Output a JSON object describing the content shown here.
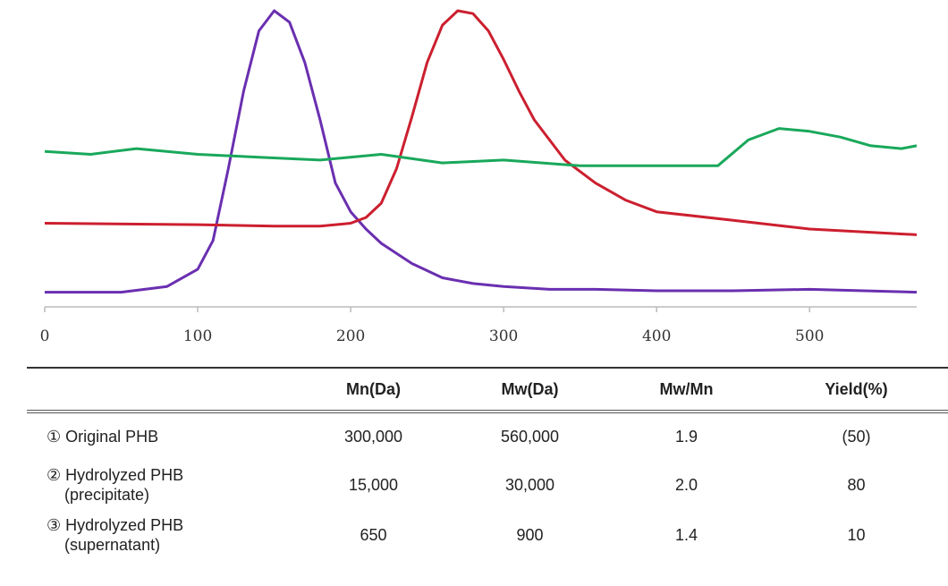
{
  "chart_data": {
    "type": "line",
    "xlim": [
      0,
      570
    ],
    "ylim": [
      0,
      1
    ],
    "x_ticks": [
      0,
      100,
      200,
      300,
      400,
      500
    ],
    "xlabel": "",
    "ylabel": "",
    "grid": false,
    "series": [
      {
        "color": "#6a2fb0",
        "x": [
          0,
          50,
          80,
          100,
          110,
          120,
          130,
          140,
          150,
          160,
          170,
          180,
          190,
          200,
          210,
          220,
          240,
          260,
          280,
          300,
          330,
          360,
          400,
          450,
          500,
          570
        ],
        "y": [
          0.02,
          0.02,
          0.04,
          0.1,
          0.2,
          0.45,
          0.72,
          0.93,
          1.0,
          0.96,
          0.82,
          0.62,
          0.4,
          0.3,
          0.24,
          0.19,
          0.12,
          0.07,
          0.05,
          0.04,
          0.03,
          0.03,
          0.025,
          0.025,
          0.03,
          0.02
        ]
      },
      {
        "color": "#cc1f2f",
        "x": [
          0,
          100,
          150,
          180,
          200,
          210,
          220,
          230,
          240,
          250,
          260,
          270,
          280,
          290,
          300,
          310,
          320,
          340,
          360,
          380,
          400,
          450,
          500,
          570
        ],
        "y": [
          0.26,
          0.255,
          0.25,
          0.25,
          0.26,
          0.28,
          0.33,
          0.45,
          0.63,
          0.82,
          0.95,
          1.0,
          0.99,
          0.93,
          0.83,
          0.72,
          0.62,
          0.48,
          0.4,
          0.34,
          0.3,
          0.27,
          0.24,
          0.22
        ]
      },
      {
        "color": "#19a85b",
        "x": [
          0,
          30,
          60,
          100,
          140,
          180,
          220,
          260,
          300,
          350,
          400,
          440,
          460,
          480,
          500,
          520,
          540,
          560,
          570
        ],
        "y": [
          0.51,
          0.5,
          0.52,
          0.5,
          0.49,
          0.48,
          0.5,
          0.47,
          0.48,
          0.46,
          0.46,
          0.46,
          0.55,
          0.59,
          0.58,
          0.56,
          0.53,
          0.52,
          0.53
        ]
      }
    ]
  },
  "table": {
    "headers": [
      "",
      "Mn(Da)",
      "Mw(Da)",
      "Mw/Mn",
      "Yield(%)"
    ],
    "rows": [
      {
        "label1": "① Original PHB",
        "label2": "",
        "mn": "300,000",
        "mw": "560,000",
        "ratio": "1.9",
        "yield": "(50)"
      },
      {
        "label1": "② Hydrolyzed PHB",
        "label2": "(precipitate)",
        "mn": "15,000",
        "mw": "30,000",
        "ratio": "2.0",
        "yield": "80"
      },
      {
        "label1": "③ Hydrolyzed PHB",
        "label2": "(supernatant)",
        "mn": "650",
        "mw": "900",
        "ratio": "1.4",
        "yield": "10"
      }
    ]
  }
}
